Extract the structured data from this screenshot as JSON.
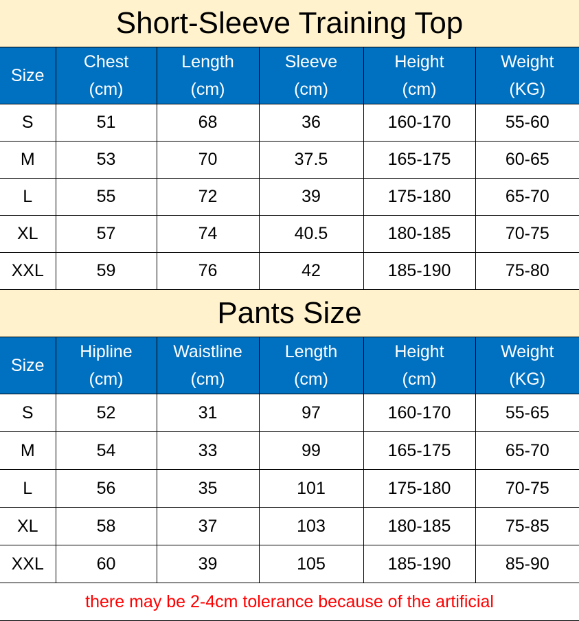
{
  "top": {
    "title": "Short-Sleeve Training Top",
    "headers": [
      [
        "Size",
        ""
      ],
      [
        "Chest",
        "(cm)"
      ],
      [
        "Length",
        "(cm)"
      ],
      [
        "Sleeve",
        "(cm)"
      ],
      [
        "Height",
        "(cm)"
      ],
      [
        "Weight",
        "(KG)"
      ]
    ],
    "rows": [
      [
        "S",
        "51",
        "68",
        "36",
        "160-170",
        "55-60"
      ],
      [
        "M",
        "53",
        "70",
        "37.5",
        "165-175",
        "60-65"
      ],
      [
        "L",
        "55",
        "72",
        "39",
        "175-180",
        "65-70"
      ],
      [
        "XL",
        "57",
        "74",
        "40.5",
        "180-185",
        "70-75"
      ],
      [
        "XXL",
        "59",
        "76",
        "42",
        "185-190",
        "75-80"
      ]
    ]
  },
  "pants": {
    "title": "Pants Size",
    "headers": [
      [
        "Size",
        ""
      ],
      [
        "Hipline",
        "(cm)"
      ],
      [
        "Waistline",
        "(cm)"
      ],
      [
        "Length",
        "(cm)"
      ],
      [
        "Height",
        "(cm)"
      ],
      [
        "Weight",
        "(KG)"
      ]
    ],
    "rows": [
      [
        "S",
        "52",
        "31",
        "97",
        "160-170",
        "55-65"
      ],
      [
        "M",
        "54",
        "33",
        "99",
        "165-175",
        "65-70"
      ],
      [
        "L",
        "56",
        "35",
        "101",
        "175-180",
        "70-75"
      ],
      [
        "XL",
        "58",
        "37",
        "103",
        "180-185",
        "75-85"
      ],
      [
        "XXL",
        "60",
        "39",
        "105",
        "185-190",
        "85-90"
      ]
    ]
  },
  "note": "there may be 2-4cm tolerance because of the artificial",
  "colors": {
    "header_bg": "#0070c0",
    "title_bg": "#fff2cc",
    "note": "#ff0000"
  }
}
